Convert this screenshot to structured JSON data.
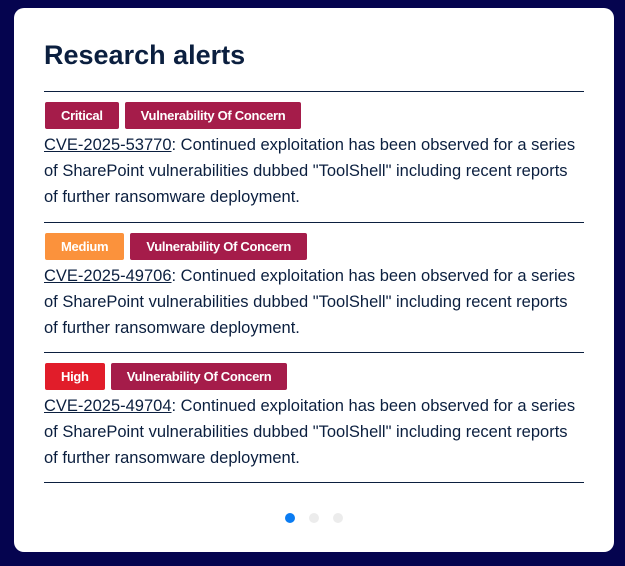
{
  "title": "Research alerts",
  "colors": {
    "critical": "#a51c4a",
    "medium": "#fb923c",
    "high": "#e11d2a",
    "concern": "#a51c4a",
    "active_dot": "#0a7cf2"
  },
  "alerts": [
    {
      "severity": "Critical",
      "severity_color": "#a51c4a",
      "category": "Vulnerability Of Concern",
      "cve": "CVE-2025-53770",
      "text": ": Continued exploitation has been observed for a series of SharePoint vulnerabilities dubbed \"ToolShell\" including recent reports of further ransomware deployment."
    },
    {
      "severity": "Medium",
      "severity_color": "#fb923c",
      "category": "Vulnerability Of Concern",
      "cve": "CVE-2025-49706",
      "text": ": Continued exploitation has been observed for a series of SharePoint vulnerabilities dubbed \"ToolShell\" including recent reports of further ransomware deployment."
    },
    {
      "severity": "High",
      "severity_color": "#e11d2a",
      "category": "Vulnerability Of Concern",
      "cve": "CVE-2025-49704",
      "text": ": Continued exploitation has been observed for a series of SharePoint vulnerabilities dubbed \"ToolShell\" including recent reports of further ransomware deployment."
    }
  ],
  "pagination": {
    "pages": 3,
    "active": 1
  }
}
